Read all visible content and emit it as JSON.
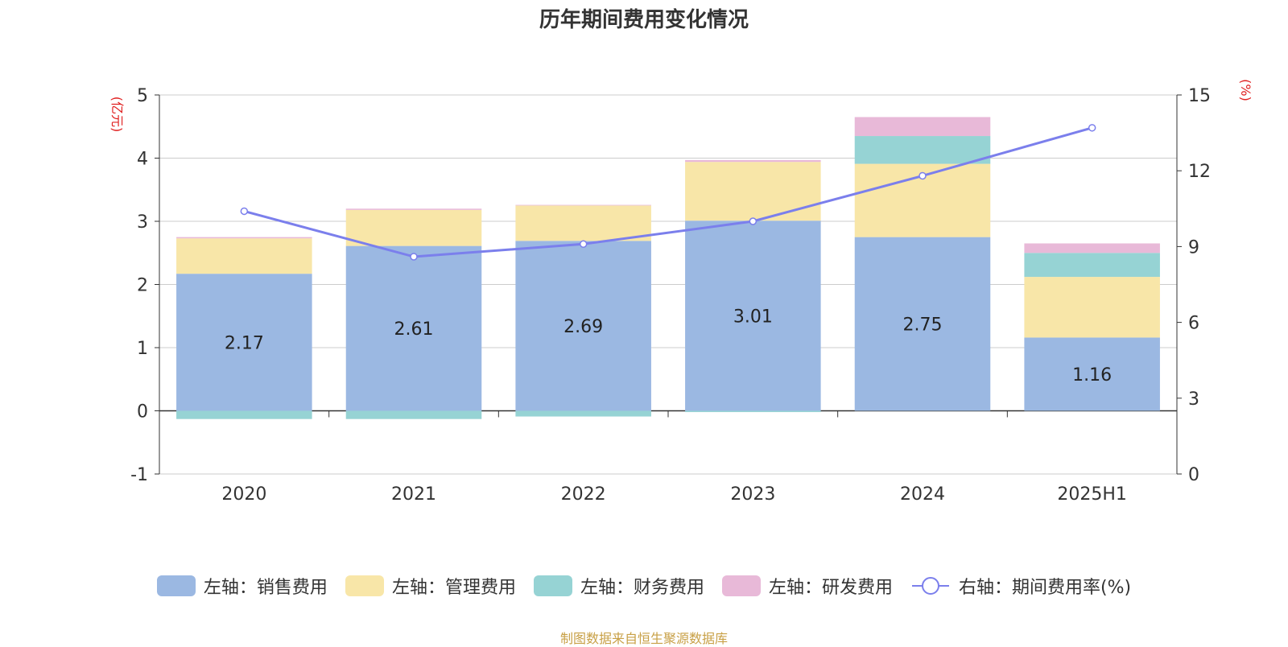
{
  "chart_data": {
    "type": "bar",
    "title": "历年期间费用变化情况",
    "categories": [
      "2020",
      "2021",
      "2022",
      "2023",
      "2024",
      "2025H1"
    ],
    "left_axis": {
      "unit_label": "(亿元)",
      "ylim": [
        -1,
        5
      ],
      "ticks": [
        -1,
        0,
        1,
        2,
        3,
        4,
        5
      ]
    },
    "right_axis": {
      "unit_label": "(%)",
      "ylim": [
        0,
        15
      ],
      "ticks": [
        0,
        3,
        6,
        9,
        12,
        15
      ]
    },
    "series": [
      {
        "name": "左轴：销售费用",
        "axis": "left",
        "kind": "bar",
        "color": "#9bb8e2",
        "values": [
          2.17,
          2.61,
          2.69,
          3.01,
          2.75,
          1.16
        ],
        "show_labels": true
      },
      {
        "name": "左轴：管理费用",
        "axis": "left",
        "kind": "bar",
        "color": "#f8e6a8",
        "values": [
          0.56,
          0.57,
          0.56,
          0.93,
          1.16,
          0.96
        ]
      },
      {
        "name": "左轴：财务费用",
        "axis": "left",
        "kind": "bar",
        "color": "#96d3d4",
        "values": [
          -0.13,
          -0.13,
          -0.09,
          -0.02,
          0.44,
          0.38
        ]
      },
      {
        "name": "左轴：研发费用",
        "axis": "left",
        "kind": "bar",
        "color": "#e8b9d8",
        "values": [
          0.02,
          0.02,
          0.01,
          0.03,
          0.3,
          0.15
        ]
      },
      {
        "name": "右轴：期间费用率(%)",
        "axis": "right",
        "kind": "line",
        "color": "#7b7fec",
        "values": [
          10.4,
          8.6,
          9.1,
          10.0,
          11.8,
          13.7
        ]
      }
    ],
    "grid": true,
    "legend_position": "bottom"
  },
  "source_note": "制图数据来自恒生聚源数据库"
}
